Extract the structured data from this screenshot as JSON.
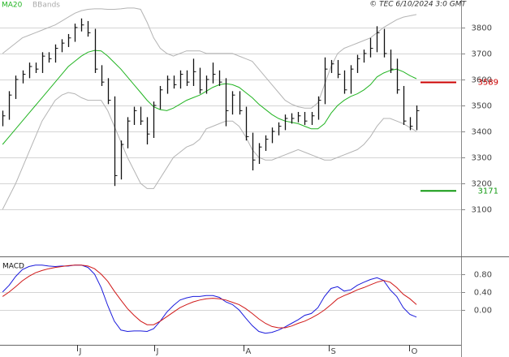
{
  "chart_data": [
    {
      "type": "ohlc",
      "title": "© TEC 6/10/2024 3:0 GMT",
      "bar_color": "#111111",
      "x": [
        0,
        1,
        2,
        3,
        4,
        5,
        6,
        7,
        8,
        9,
        10,
        11,
        12,
        13,
        14,
        15,
        16,
        17,
        18,
        19,
        20,
        21,
        22,
        23,
        24,
        25,
        26,
        27,
        28,
        29,
        30,
        31,
        32,
        33,
        34,
        35,
        36,
        37,
        38,
        39,
        40,
        41,
        42,
        43,
        44,
        45,
        46,
        47,
        48,
        49,
        50,
        51,
        52,
        53,
        54,
        55,
        56,
        57,
        58,
        59,
        60,
        61,
        62,
        63
      ],
      "high": [
        3480,
        3555,
        3615,
        3635,
        3665,
        3665,
        3705,
        3705,
        3735,
        3755,
        3775,
        3815,
        3835,
        3825,
        3795,
        3655,
        3605,
        3535,
        3365,
        3455,
        3495,
        3495,
        3455,
        3515,
        3575,
        3615,
        3615,
        3635,
        3635,
        3680,
        3645,
        3615,
        3665,
        3635,
        3605,
        3555,
        3555,
        3495,
        3395,
        3355,
        3385,
        3415,
        3435,
        3465,
        3470,
        3475,
        3475,
        3475,
        3535,
        3685,
        3675,
        3675,
        3635,
        3655,
        3695,
        3715,
        3760,
        3805,
        3795,
        3715,
        3680,
        3575,
        3455,
        3500
      ],
      "low": [
        3420,
        3445,
        3525,
        3585,
        3605,
        3625,
        3625,
        3665,
        3665,
        3705,
        3725,
        3745,
        3785,
        3765,
        3625,
        3575,
        3505,
        3190,
        3215,
        3335,
        3425,
        3425,
        3350,
        3375,
        3485,
        3545,
        3565,
        3565,
        3575,
        3575,
        3545,
        3545,
        3585,
        3575,
        3420,
        3465,
        3465,
        3365,
        3250,
        3275,
        3325,
        3355,
        3385,
        3405,
        3430,
        3435,
        3425,
        3425,
        3445,
        3505,
        3625,
        3605,
        3545,
        3545,
        3625,
        3665,
        3685,
        3705,
        3685,
        3625,
        3545,
        3425,
        3405,
        3405
      ],
      "close": [
        3460,
        3540,
        3600,
        3620,
        3650,
        3640,
        3690,
        3680,
        3720,
        3740,
        3760,
        3800,
        3810,
        3780,
        3640,
        3590,
        3520,
        3230,
        3350,
        3440,
        3480,
        3440,
        3390,
        3500,
        3560,
        3600,
        3580,
        3620,
        3590,
        3630,
        3560,
        3600,
        3620,
        3590,
        3480,
        3540,
        3480,
        3380,
        3290,
        3340,
        3370,
        3400,
        3420,
        3450,
        3450,
        3460,
        3440,
        3460,
        3520,
        3640,
        3660,
        3620,
        3560,
        3640,
        3680,
        3700,
        3720,
        3780,
        3700,
        3640,
        3560,
        3440,
        3420,
        3480
      ],
      "series": [
        {
          "name": "MA20",
          "color": "#22b422",
          "values": [
            3350,
            3380,
            3410,
            3440,
            3470,
            3500,
            3530,
            3560,
            3590,
            3620,
            3650,
            3670,
            3690,
            3705,
            3712,
            3710,
            3690,
            3665,
            3640,
            3610,
            3580,
            3550,
            3520,
            3495,
            3484,
            3480,
            3490,
            3505,
            3520,
            3530,
            3540,
            3555,
            3570,
            3580,
            3584,
            3580,
            3570,
            3550,
            3530,
            3505,
            3485,
            3465,
            3450,
            3440,
            3435,
            3430,
            3420,
            3410,
            3410,
            3430,
            3470,
            3500,
            3520,
            3535,
            3545,
            3560,
            3580,
            3610,
            3625,
            3635,
            3640,
            3630,
            3615,
            3603
          ]
        },
        {
          "name": "BBands",
          "color": "#b4b4b4",
          "values": [
            3700,
            3720,
            3740,
            3760,
            3770,
            3780,
            3790,
            3800,
            3810,
            3825,
            3840,
            3855,
            3865,
            3870,
            3872,
            3872,
            3870,
            3870,
            3872,
            3875,
            3875,
            3870,
            3820,
            3760,
            3720,
            3700,
            3690,
            3700,
            3710,
            3710,
            3710,
            3700,
            3700,
            3700,
            3700,
            3700,
            3690,
            3680,
            3670,
            3640,
            3610,
            3580,
            3550,
            3520,
            3505,
            3495,
            3490,
            3490,
            3510,
            3580,
            3650,
            3700,
            3720,
            3730,
            3740,
            3750,
            3760,
            3780,
            3800,
            3815,
            3830,
            3840,
            3845,
            3850
          ],
          "lower": [
            3100,
            3150,
            3200,
            3260,
            3320,
            3380,
            3440,
            3480,
            3520,
            3540,
            3550,
            3545,
            3530,
            3520,
            3520,
            3520,
            3480,
            3420,
            3360,
            3300,
            3250,
            3200,
            3180,
            3180,
            3220,
            3260,
            3300,
            3320,
            3340,
            3350,
            3370,
            3410,
            3420,
            3430,
            3440,
            3440,
            3420,
            3380,
            3330,
            3300,
            3290,
            3290,
            3300,
            3310,
            3320,
            3330,
            3320,
            3310,
            3300,
            3290,
            3290,
            3300,
            3310,
            3320,
            3330,
            3350,
            3380,
            3420,
            3450,
            3450,
            3440,
            3430,
            3415,
            3400
          ]
        }
      ],
      "levels": [
        {
          "value": 3589,
          "color": "#cc0000"
        },
        {
          "value": 3171,
          "color": "#119911"
        }
      ],
      "xlim": [
        -0.4,
        69.8
      ],
      "xticks": [
        {
          "value": 11.4,
          "label": "J"
        },
        {
          "value": 23.1,
          "label": "J"
        },
        {
          "value": 36.7,
          "label": "A"
        },
        {
          "value": 49.6,
          "label": "S"
        },
        {
          "value": 61.9,
          "label": "O"
        }
      ],
      "ylim": [
        2922,
        3906
      ],
      "yticks": [
        3100,
        3200,
        3300,
        3400,
        3500,
        3600,
        3700,
        3800
      ],
      "grid": true
    },
    {
      "type": "line",
      "title": "MACD",
      "series": [
        {
          "color": "#1a1adc",
          "values": [
            0.4,
            0.55,
            0.75,
            0.9,
            0.97,
            1.0,
            1.0,
            0.98,
            0.97,
            0.98,
            0.98,
            1.0,
            1.0,
            0.95,
            0.8,
            0.5,
            0.1,
            -0.25,
            -0.45,
            -0.48,
            -0.47,
            -0.47,
            -0.48,
            -0.42,
            -0.25,
            -0.05,
            0.1,
            0.22,
            0.27,
            0.3,
            0.3,
            0.32,
            0.32,
            0.28,
            0.18,
            0.12,
            0.0,
            -0.18,
            -0.35,
            -0.48,
            -0.52,
            -0.5,
            -0.45,
            -0.38,
            -0.3,
            -0.22,
            -0.12,
            -0.08,
            0.05,
            0.3,
            0.48,
            0.52,
            0.42,
            0.45,
            0.55,
            0.62,
            0.68,
            0.72,
            0.66,
            0.45,
            0.3,
            0.05,
            -0.1,
            -0.16
          ]
        },
        {
          "color": "#d01818",
          "values": [
            0.3,
            0.4,
            0.52,
            0.65,
            0.75,
            0.83,
            0.88,
            0.92,
            0.95,
            0.97,
            0.99,
            1.0,
            1.0,
            0.98,
            0.92,
            0.8,
            0.64,
            0.42,
            0.22,
            0.03,
            -0.12,
            -0.25,
            -0.33,
            -0.33,
            -0.25,
            -0.15,
            -0.05,
            0.05,
            0.12,
            0.18,
            0.22,
            0.25,
            0.26,
            0.25,
            0.22,
            0.17,
            0.12,
            0.03,
            -0.08,
            -0.2,
            -0.3,
            -0.37,
            -0.4,
            -0.4,
            -0.36,
            -0.3,
            -0.25,
            -0.18,
            -0.1,
            0.0,
            0.12,
            0.25,
            0.32,
            0.38,
            0.45,
            0.5,
            0.56,
            0.62,
            0.66,
            0.62,
            0.5,
            0.35,
            0.25,
            0.12
          ]
        }
      ],
      "ylim": [
        -0.78,
        1.16
      ],
      "yticks": [
        {
          "value": 0.0,
          "label": "0.00"
        },
        {
          "value": 0.4,
          "label": "0.40"
        },
        {
          "value": 0.8,
          "label": "0.80"
        }
      ],
      "grid": true
    }
  ]
}
